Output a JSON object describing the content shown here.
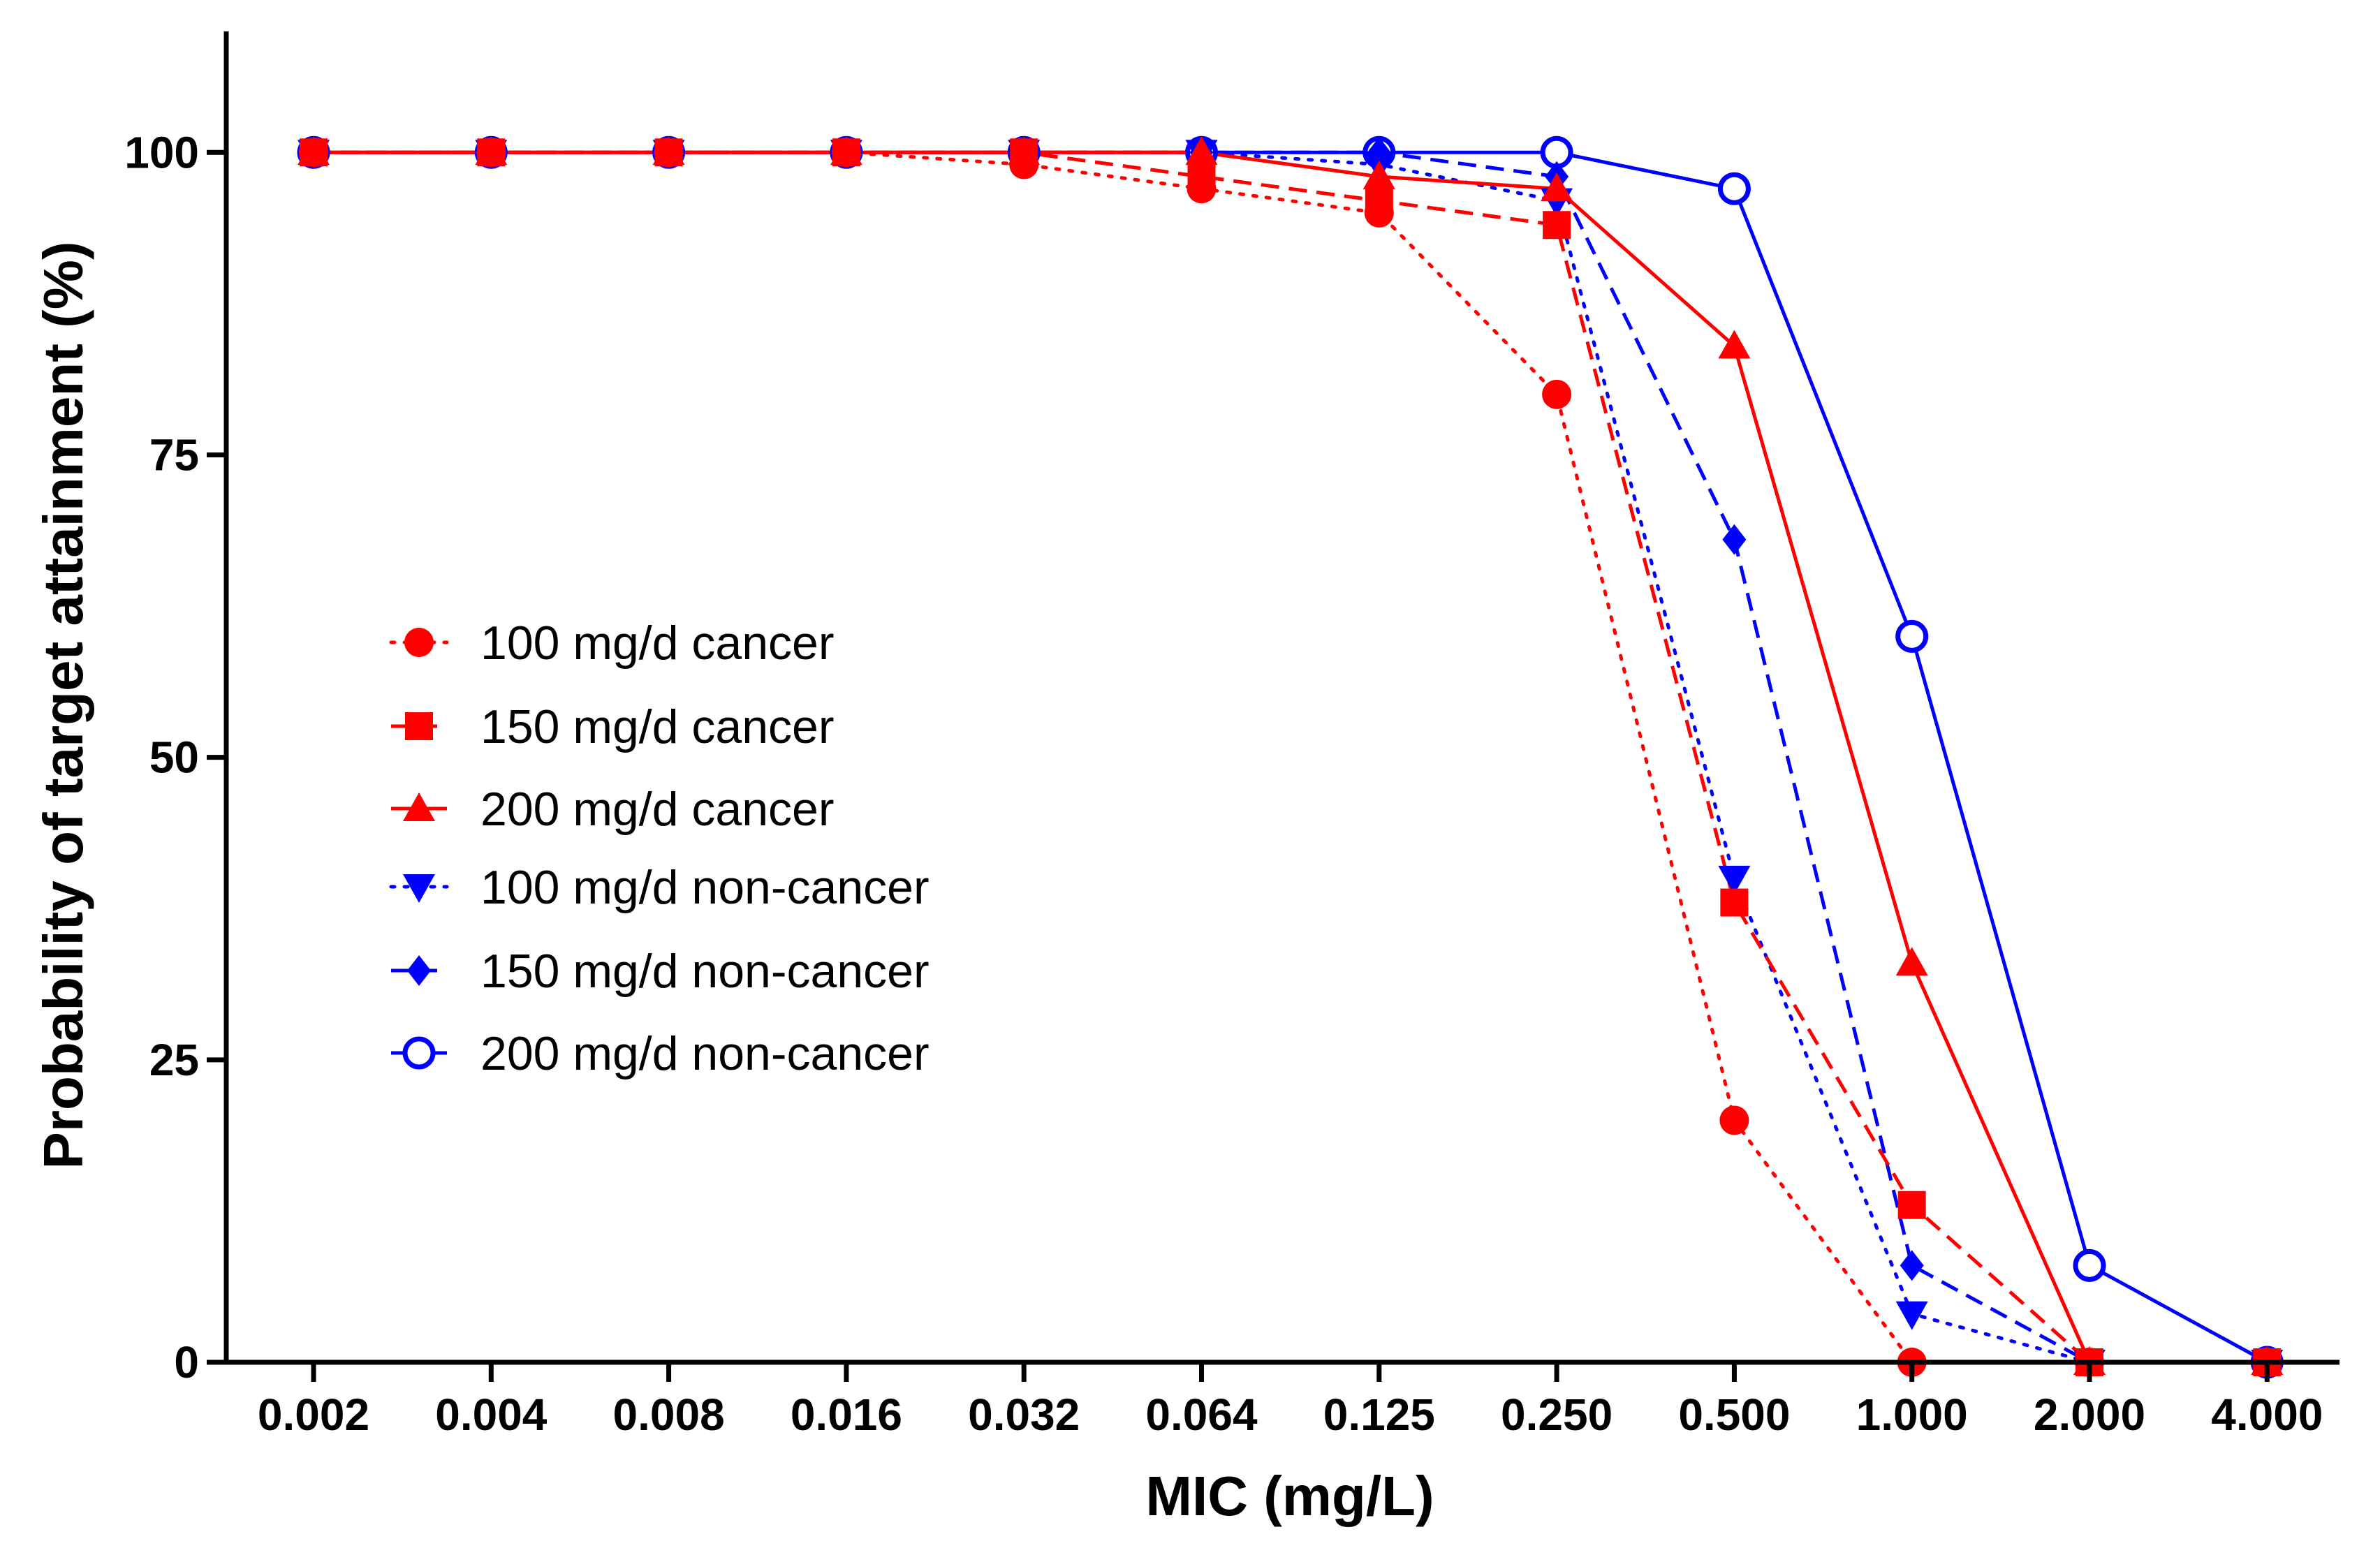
{
  "chart_data": {
    "type": "line",
    "title": "",
    "xlabel": "MIC (mg/L)",
    "ylabel": "Probability of target attainment (%)",
    "categories": [
      "0.002",
      "0.004",
      "0.008",
      "0.016",
      "0.032",
      "0.064",
      "0.125",
      "0.250",
      "0.500",
      "1.000",
      "2.000",
      "4.000"
    ],
    "ylim": [
      0,
      110
    ],
    "yticks": [
      "0",
      "25",
      "50",
      "75",
      "100"
    ],
    "grid": false,
    "legend_position": "center-left",
    "series": [
      {
        "name": "100 mg/d cancer",
        "color": "#ff0000",
        "marker": "circle",
        "dash": "dotted",
        "values": [
          100,
          100,
          100,
          100,
          99,
          97,
          95,
          80,
          20,
          0,
          0,
          0
        ]
      },
      {
        "name": "150 mg/d cancer",
        "color": "#ff0000",
        "marker": "square",
        "dash": "dashed",
        "values": [
          100,
          100,
          100,
          100,
          100,
          98,
          96,
          94,
          38,
          13,
          0,
          0
        ]
      },
      {
        "name": "200 mg/d cancer",
        "color": "#ff0000",
        "marker": "triangle-up",
        "dash": "solid",
        "values": [
          100,
          100,
          100,
          100,
          100,
          100,
          98,
          97,
          84,
          33,
          0,
          0
        ]
      },
      {
        "name": "100 mg/d non-cancer",
        "color": "#0000ff",
        "marker": "triangle-down",
        "dash": "dotted",
        "values": [
          100,
          100,
          100,
          100,
          100,
          100,
          99,
          96,
          40,
          4,
          0,
          0
        ]
      },
      {
        "name": "150 mg/d non-cancer",
        "color": "#0000ff",
        "marker": "diamond",
        "dash": "dashed",
        "values": [
          100,
          100,
          100,
          100,
          100,
          100,
          100,
          98,
          68,
          8,
          0,
          0
        ]
      },
      {
        "name": "200 mg/d non-cancer",
        "color": "#0000ff",
        "marker": "open-circle",
        "dash": "solid",
        "values": [
          100,
          100,
          100,
          100,
          100,
          100,
          100,
          100,
          97,
          60,
          8,
          0
        ]
      }
    ]
  }
}
